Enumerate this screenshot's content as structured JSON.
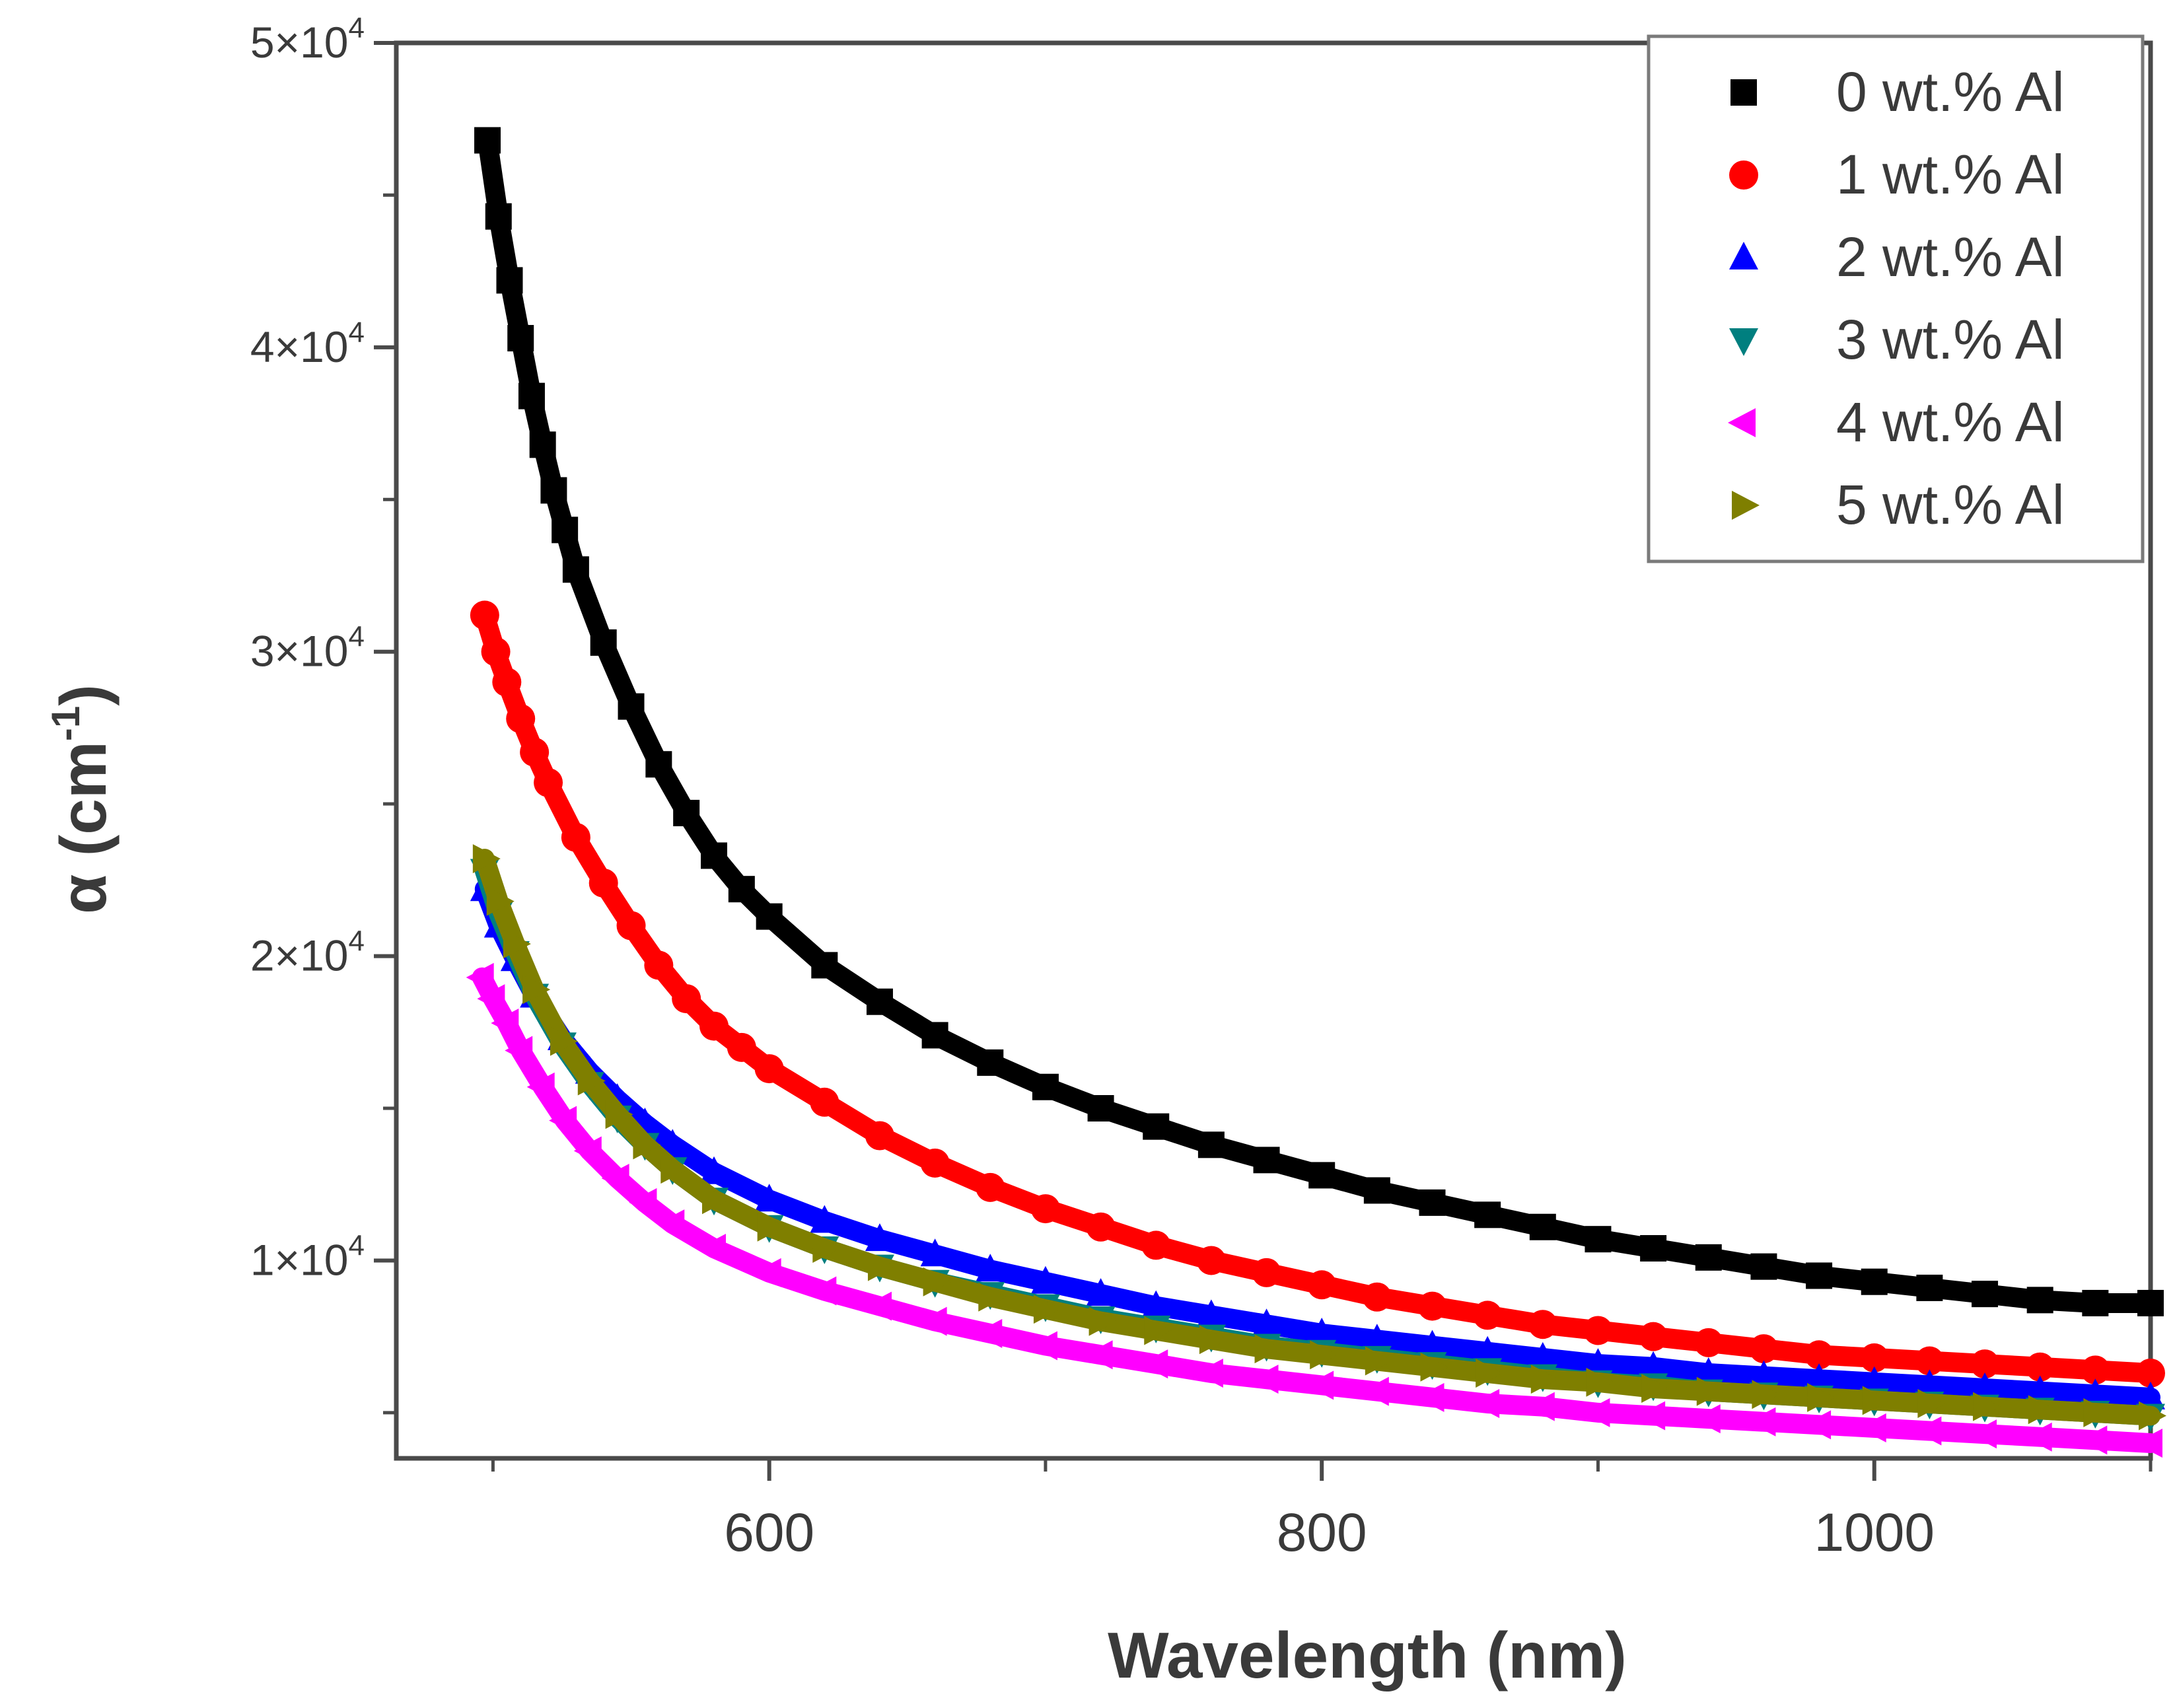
{
  "chart_data": {
    "type": "scatter",
    "title": "",
    "xlabel": "Wavelength (nm)",
    "ylabel_base": "α (cm",
    "ylabel_exp": "-1",
    "ylabel_close": ")",
    "xlim": [
      465,
      1100
    ],
    "ylim": [
      3500,
      50000
    ],
    "x_ticks": [
      {
        "value": 600,
        "label": "600"
      },
      {
        "value": 800,
        "label": "800"
      },
      {
        "value": 1000,
        "label": "1000"
      }
    ],
    "x_minor_ticks": [
      500,
      700,
      900,
      1100
    ],
    "y_ticks": [
      {
        "value": 10000,
        "mantissa": "1×10",
        "exp": "4"
      },
      {
        "value": 20000,
        "mantissa": "2×10",
        "exp": "4"
      },
      {
        "value": 30000,
        "mantissa": "3×10",
        "exp": "4"
      },
      {
        "value": 40000,
        "mantissa": "4×10",
        "exp": "4"
      },
      {
        "value": 50000,
        "mantissa": "5×10",
        "exp": "4"
      }
    ],
    "y_minor_ticks": [
      5000,
      15000,
      25000,
      35000,
      45000
    ],
    "grid": false,
    "legend_position": "top-right",
    "series": [
      {
        "name": "0 wt.% Al",
        "marker": "square",
        "color": "#000000",
        "x": [
          498,
          502,
          506,
          510,
          514,
          518,
          522,
          526,
          530,
          540,
          550,
          560,
          570,
          580,
          590,
          600,
          620,
          640,
          660,
          680,
          700,
          720,
          740,
          760,
          780,
          800,
          820,
          840,
          860,
          880,
          900,
          920,
          940,
          960,
          980,
          1000,
          1020,
          1040,
          1060,
          1080,
          1100
        ],
        "y": [
          46800,
          44300,
          42200,
          40300,
          38400,
          36800,
          35300,
          34000,
          32700,
          30300,
          28200,
          26300,
          24700,
          23300,
          22200,
          21300,
          19700,
          18500,
          17400,
          16500,
          15700,
          15000,
          14400,
          13800,
          13300,
          12800,
          12300,
          11900,
          11500,
          11100,
          10700,
          10400,
          10100,
          9800,
          9500,
          9300,
          9100,
          8900,
          8700,
          8600,
          8600
        ]
      },
      {
        "name": "1 wt.% Al",
        "marker": "circle",
        "color": "#ff0000",
        "x": [
          497,
          501,
          505,
          510,
          515,
          520,
          530,
          540,
          550,
          560,
          570,
          580,
          590,
          600,
          620,
          640,
          660,
          680,
          700,
          720,
          740,
          760,
          780,
          800,
          820,
          840,
          860,
          880,
          900,
          920,
          940,
          960,
          980,
          1000,
          1020,
          1040,
          1060,
          1080,
          1100
        ],
        "y": [
          31200,
          30000,
          29000,
          27800,
          26700,
          25700,
          23900,
          22400,
          21000,
          19700,
          18600,
          17700,
          17000,
          16300,
          15200,
          14100,
          13200,
          12400,
          11700,
          11100,
          10500,
          10000,
          9600,
          9200,
          8800,
          8500,
          8200,
          7900,
          7700,
          7500,
          7300,
          7100,
          6900,
          6800,
          6700,
          6600,
          6500,
          6400,
          6300
        ]
      },
      {
        "name": "2 wt.% Al",
        "marker": "triangle-up",
        "color": "#0000ff",
        "x": [
          497,
          502,
          508,
          515,
          525,
          535,
          545,
          555,
          565,
          580,
          600,
          620,
          640,
          660,
          680,
          700,
          720,
          740,
          760,
          780,
          800,
          820,
          840,
          860,
          880,
          900,
          920,
          940,
          960,
          980,
          1000,
          1020,
          1040,
          1060,
          1080,
          1100
        ],
        "y": [
          22200,
          21000,
          19900,
          18700,
          17300,
          16200,
          15300,
          14500,
          13800,
          12900,
          12000,
          11300,
          10700,
          10200,
          9700,
          9300,
          8900,
          8500,
          8200,
          7900,
          7600,
          7400,
          7200,
          7000,
          6800,
          6600,
          6500,
          6300,
          6200,
          6100,
          6000,
          5900,
          5800,
          5700,
          5600,
          5500
        ]
      },
      {
        "name": "3 wt.% Al",
        "marker": "triangle-down",
        "color": "#007f7f",
        "x": [
          497,
          502,
          508,
          515,
          525,
          535,
          545,
          555,
          565,
          580,
          600,
          620,
          640,
          660,
          680,
          700,
          720,
          740,
          760,
          780,
          800,
          820,
          840,
          860,
          880,
          900,
          920,
          940,
          960,
          980,
          1000,
          1020,
          1040,
          1060,
          1080,
          1100
        ],
        "y": [
          22800,
          21400,
          20100,
          18700,
          17100,
          15800,
          14700,
          13800,
          13000,
          12000,
          11100,
          10400,
          9800,
          9300,
          8900,
          8500,
          8100,
          7800,
          7500,
          7200,
          7000,
          6800,
          6600,
          6400,
          6200,
          6000,
          5900,
          5700,
          5600,
          5500,
          5400,
          5300,
          5200,
          5100,
          5000,
          4900
        ]
      },
      {
        "name": "4 wt.% Al",
        "marker": "triangle-left",
        "color": "#ff00ff",
        "x": [
          496,
          500,
          505,
          510,
          518,
          526,
          535,
          545,
          555,
          565,
          580,
          600,
          620,
          640,
          660,
          680,
          700,
          720,
          740,
          760,
          780,
          800,
          820,
          840,
          860,
          880,
          900,
          920,
          940,
          960,
          980,
          1000,
          1020,
          1040,
          1060,
          1080,
          1100
        ],
        "y": [
          19300,
          18600,
          17800,
          16900,
          15700,
          14600,
          13600,
          12700,
          11900,
          11200,
          10400,
          9600,
          9000,
          8500,
          8000,
          7600,
          7200,
          6900,
          6600,
          6300,
          6100,
          5900,
          5700,
          5500,
          5300,
          5200,
          5000,
          4900,
          4800,
          4700,
          4600,
          4500,
          4400,
          4300,
          4200,
          4100,
          4000
        ]
      },
      {
        "name": "5 wt.% Al",
        "marker": "triangle-right",
        "color": "#7f7f00",
        "x": [
          497,
          502,
          508,
          515,
          525,
          535,
          545,
          555,
          565,
          580,
          600,
          620,
          640,
          660,
          680,
          700,
          720,
          740,
          760,
          780,
          800,
          820,
          840,
          860,
          880,
          900,
          920,
          940,
          960,
          980,
          1000,
          1020,
          1040,
          1060,
          1080,
          1100
        ],
        "y": [
          23200,
          21800,
          20400,
          18900,
          17200,
          15900,
          14800,
          13800,
          13000,
          12000,
          11100,
          10400,
          9800,
          9300,
          8800,
          8400,
          8000,
          7700,
          7400,
          7100,
          6900,
          6700,
          6500,
          6300,
          6100,
          6000,
          5800,
          5700,
          5600,
          5500,
          5400,
          5300,
          5200,
          5100,
          5000,
          4900
        ]
      }
    ]
  }
}
